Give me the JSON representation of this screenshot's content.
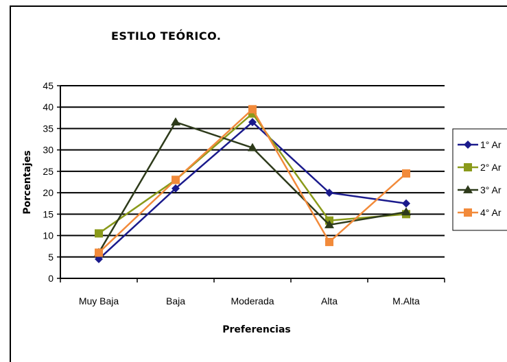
{
  "chart_data": {
    "type": "line",
    "title": "ESTILO TEÓRICO.",
    "xlabel": "Preferencias",
    "ylabel": "Porcentajes",
    "categories": [
      "Muy Baja",
      "Baja",
      "Moderada",
      "Alta",
      "M.Alta"
    ],
    "ylim": [
      0,
      45
    ],
    "yticks": [
      0,
      5,
      10,
      15,
      20,
      25,
      30,
      35,
      40,
      45
    ],
    "grid": true,
    "legend_position": "right",
    "series": [
      {
        "name": "1° Ar",
        "values": [
          4.5,
          21,
          36.5,
          20,
          17.5
        ],
        "color": "#1a1a8c",
        "marker": "diamond"
      },
      {
        "name": "2° Ar",
        "values": [
          10.5,
          23,
          38.5,
          13.5,
          15
        ],
        "color": "#8a9a1a",
        "marker": "square"
      },
      {
        "name": "3° Ar",
        "values": [
          6,
          36.5,
          30.5,
          12.5,
          15.5
        ],
        "color": "#2d3a1a",
        "marker": "triangle"
      },
      {
        "name": "4° Ar",
        "values": [
          6,
          23,
          39.5,
          8.5,
          24.5
        ],
        "color": "#f28a3a",
        "marker": "square"
      }
    ]
  }
}
